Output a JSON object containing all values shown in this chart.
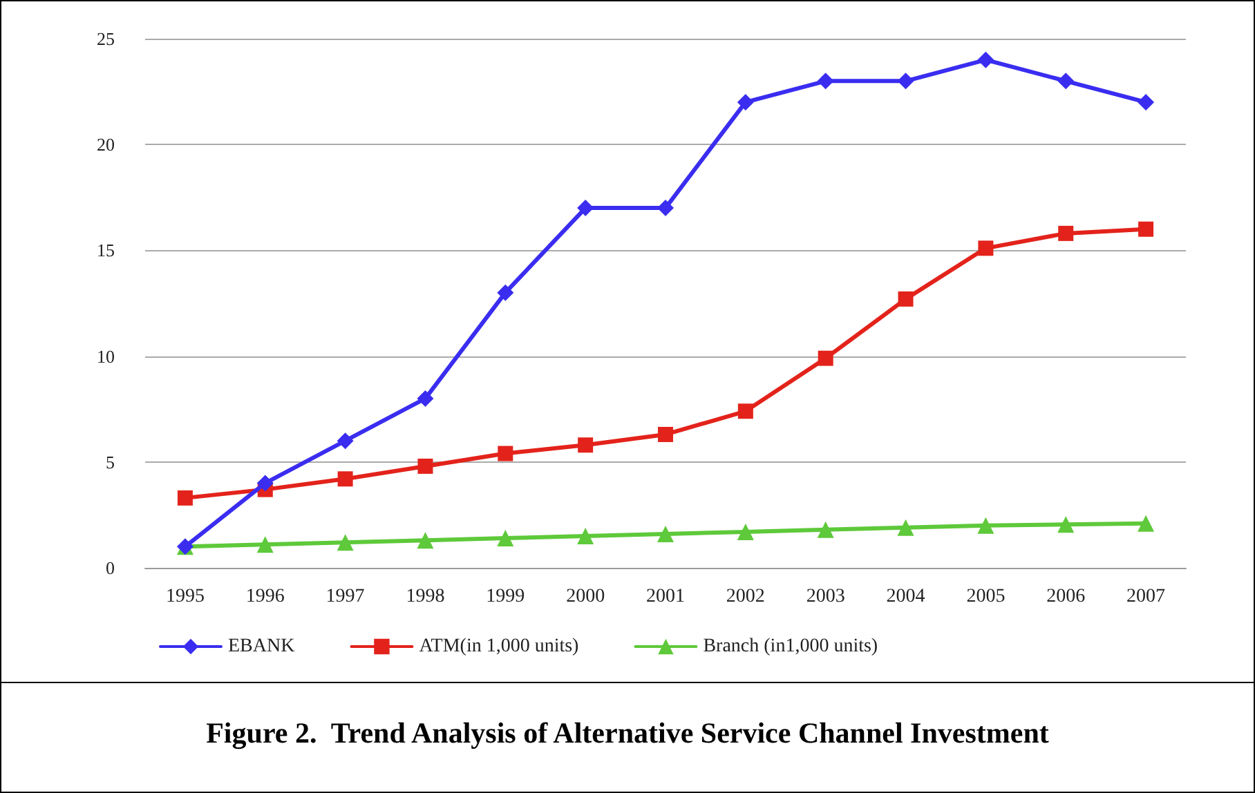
{
  "chart_data": {
    "type": "line",
    "title": "Figure 2.  Trend Analysis of Alternative Service Channel Investment",
    "categories": [
      "1995",
      "1996",
      "1997",
      "1998",
      "1999",
      "2000",
      "2001",
      "2002",
      "2003",
      "2004",
      "2005",
      "2006",
      "2007"
    ],
    "series": [
      {
        "name": "EBANK",
        "color": "#3a2df0",
        "marker": "diamond",
        "values": [
          1,
          4,
          6,
          8,
          13,
          17,
          17,
          22,
          23,
          23,
          24,
          23,
          22
        ]
      },
      {
        "name": "ATM(in 1,000 units)",
        "color": "#e3231b",
        "marker": "square",
        "values": [
          3.3,
          3.7,
          4.2,
          4.8,
          5.4,
          5.8,
          6.3,
          7.4,
          9.9,
          12.7,
          15.1,
          15.8,
          16.0
        ]
      },
      {
        "name": "Branch (in1,000 units)",
        "color": "#5ec93a",
        "marker": "triangle",
        "values": [
          1.0,
          1.1,
          1.2,
          1.3,
          1.4,
          1.5,
          1.6,
          1.7,
          1.8,
          1.9,
          2.0,
          2.05,
          2.1
        ]
      }
    ],
    "ylim": [
      0,
      25
    ],
    "yticks": [
      0,
      5,
      10,
      15,
      20,
      25
    ],
    "grid": "y",
    "legend": "bottom",
    "line_style": "solid"
  }
}
